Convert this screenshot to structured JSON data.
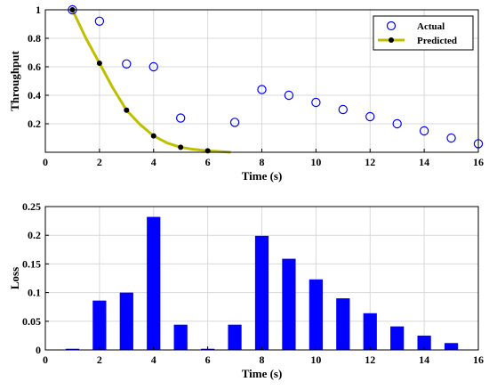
{
  "chart_data": [
    {
      "type": "line",
      "xlabel": "Time (s)",
      "ylabel": "Throughput",
      "xlim": [
        0,
        16
      ],
      "ylim": [
        0,
        1
      ],
      "xticks": [
        0,
        2,
        4,
        6,
        8,
        10,
        12,
        14,
        16
      ],
      "yticks": [
        0.2,
        0.4,
        0.6,
        0.8,
        1
      ],
      "ytick_labels": [
        "0.2",
        "0.4",
        "0.6",
        "0.8",
        "1"
      ],
      "grid": true,
      "legend": "top-right",
      "series": [
        {
          "name": "Actual",
          "style": "scatter-open-circle",
          "color": "#0000ff",
          "x": [
            1,
            2,
            3,
            4,
            5,
            7,
            8,
            9,
            10,
            11,
            12,
            13,
            14,
            15,
            16
          ],
          "y": [
            1.0,
            0.92,
            0.62,
            0.6,
            0.24,
            0.21,
            0.44,
            0.4,
            0.35,
            0.3,
            0.25,
            0.2,
            0.15,
            0.1,
            0.06
          ]
        },
        {
          "name": "Predicted",
          "style": "line-with-dots",
          "color": "#bfbf00",
          "marker_color": "#000000",
          "x": [
            1,
            2,
            3,
            4,
            5,
            6
          ],
          "y": [
            1.0,
            0.625,
            0.295,
            0.115,
            0.035,
            0.01
          ],
          "curve_x": [
            1,
            1.5,
            2,
            2.5,
            3,
            3.5,
            4,
            4.5,
            5,
            5.5,
            6,
            6.5,
            6.85
          ],
          "curve_y": [
            1.0,
            0.8,
            0.625,
            0.45,
            0.295,
            0.195,
            0.115,
            0.065,
            0.035,
            0.02,
            0.01,
            0.005,
            0.0
          ]
        }
      ]
    },
    {
      "type": "bar",
      "xlabel": "Time (s)",
      "ylabel": "Loss",
      "xlim": [
        0,
        16
      ],
      "ylim": [
        0,
        0.25
      ],
      "xticks": [
        0,
        2,
        4,
        6,
        8,
        10,
        12,
        14,
        16
      ],
      "yticks": [
        0,
        0.05,
        0.1,
        0.15,
        0.2,
        0.25
      ],
      "ytick_labels": [
        "0",
        "0.05",
        "0.1",
        "0.15",
        "0.2",
        "0.25"
      ],
      "grid": true,
      "color": "#0000ff",
      "x": [
        1,
        2,
        3,
        4,
        5,
        6,
        7,
        8,
        9,
        10,
        11,
        12,
        13,
        14,
        15
      ],
      "values": [
        0.002,
        0.086,
        0.1,
        0.232,
        0.044,
        0.002,
        0.044,
        0.199,
        0.159,
        0.123,
        0.09,
        0.064,
        0.041,
        0.025,
        0.012
      ]
    }
  ]
}
